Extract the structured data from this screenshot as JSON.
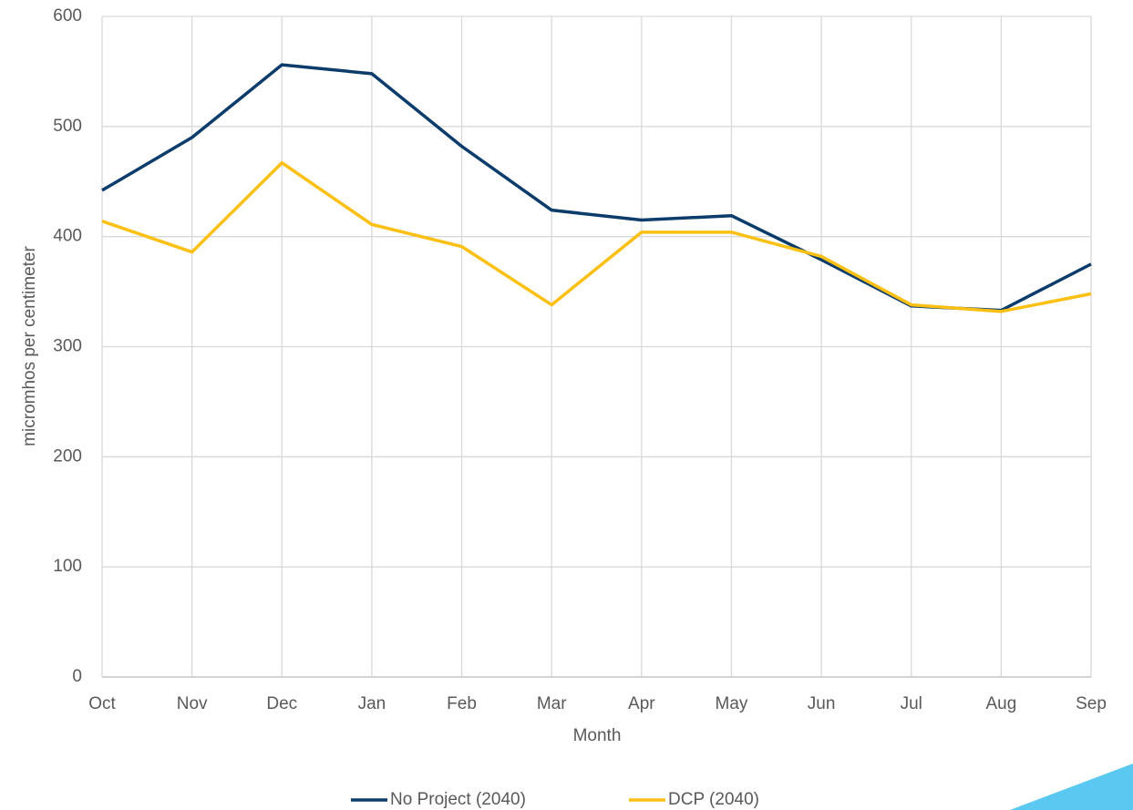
{
  "chart_data": {
    "type": "line",
    "x_label": "Month",
    "y_label": "micromhos per centimeter",
    "categories": [
      "Oct",
      "Nov",
      "Dec",
      "Jan",
      "Feb",
      "Mar",
      "Apr",
      "May",
      "Jun",
      "Jul",
      "Aug",
      "Sep"
    ],
    "series": [
      {
        "name": "No Project (2040)",
        "color": "#0b3c6b",
        "values": [
          442,
          490,
          556,
          548,
          482,
          424,
          415,
          419,
          379,
          337,
          333,
          375
        ]
      },
      {
        "name": "DCP (2040)",
        "color": "#fcc014",
        "values": [
          414,
          386,
          467,
          411,
          391,
          338,
          404,
          404,
          382,
          338,
          332,
          348
        ]
      }
    ],
    "ylim": [
      0,
      600
    ],
    "yticks": [
      0,
      100,
      200,
      300,
      400,
      500,
      600
    ],
    "grid": true,
    "legend": "bottom"
  }
}
